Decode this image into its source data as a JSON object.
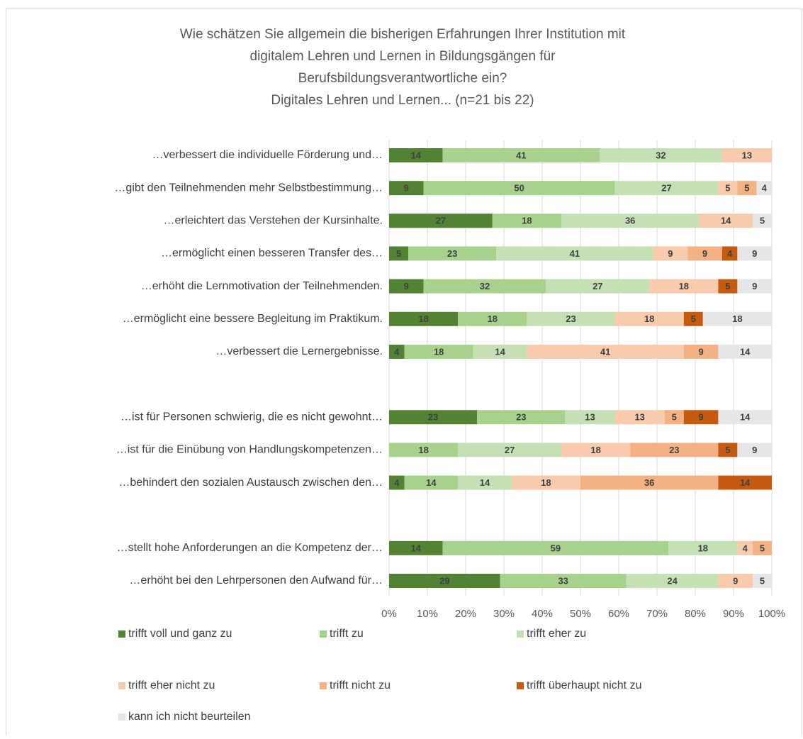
{
  "chart_data": {
    "type": "stacked-bar-horizontal",
    "title_lines": [
      "Wie schätzen Sie allgemein die bisherigen Erfahrungen Ihrer Institution mit",
      "digitalem Lehren und Lernen in Bildungsgängen für",
      "Berufsbildungsverantwortliche ein?",
      "Digitales Lehren und Lernen... (n=21 bis 22)"
    ],
    "categories": [
      "…verbessert die individuelle Förderung und…",
      "…gibt den Teilnehmenden mehr Selbstbestimmung…",
      "…erleichtert das Verstehen der Kursinhalte.",
      "…ermöglicht einen besseren Transfer des…",
      "…erhöht die Lernmotivation der Teilnehmenden.",
      "…ermöglicht eine bessere Begleitung im Praktikum.",
      "…verbessert die Lernergebnisse.",
      null,
      "…ist für Personen schwierig, die es nicht gewohnt…",
      "…ist für die Einübung von Handlungskompetenzen…",
      "…behindert den sozialen Austausch zwischen den…",
      null,
      "…stellt hohe Anforderungen an die Kompetenz der…",
      "…erhöht bei den Lehrpersonen den Aufwand für…"
    ],
    "series": [
      {
        "name": "trifft voll und ganz zu",
        "color": "#548235",
        "values": [
          14,
          9,
          27,
          5,
          9,
          18,
          4,
          null,
          23,
          null,
          4,
          null,
          14,
          29
        ]
      },
      {
        "name": "trifft zu",
        "color": "#a9d18e",
        "values": [
          41,
          50,
          18,
          23,
          32,
          18,
          18,
          null,
          23,
          18,
          14,
          null,
          59,
          33
        ]
      },
      {
        "name": "trifft eher zu",
        "color": "#c5e0b4",
        "values": [
          32,
          27,
          36,
          41,
          27,
          23,
          14,
          null,
          13,
          27,
          14,
          null,
          18,
          24
        ]
      },
      {
        "name": "trifft eher nicht zu",
        "color": "#f8cbad",
        "values": [
          13,
          5,
          14,
          9,
          18,
          18,
          41,
          null,
          13,
          18,
          18,
          null,
          4,
          9
        ]
      },
      {
        "name": "trifft nicht zu",
        "color": "#f4b183",
        "values": [
          null,
          5,
          null,
          9,
          null,
          null,
          9,
          null,
          5,
          23,
          36,
          null,
          5,
          null
        ]
      },
      {
        "name": "trifft überhaupt nicht zu",
        "color": "#c55a11",
        "values": [
          null,
          null,
          null,
          4,
          5,
          5,
          null,
          null,
          9,
          5,
          14,
          null,
          null,
          null
        ]
      },
      {
        "name": "kann ich nicht beurteilen",
        "color": "#e7e6e6",
        "values": [
          null,
          4,
          5,
          9,
          9,
          18,
          14,
          null,
          14,
          9,
          null,
          null,
          null,
          5
        ]
      }
    ],
    "xlim": [
      0,
      100
    ],
    "xticks": [
      {
        "value": 0,
        "label": "0%"
      },
      {
        "value": 10,
        "label": "10%"
      },
      {
        "value": 20,
        "label": "20%"
      },
      {
        "value": 30,
        "label": "30%"
      },
      {
        "value": 40,
        "label": "40%"
      },
      {
        "value": 50,
        "label": "50%"
      },
      {
        "value": 60,
        "label": "60%"
      },
      {
        "value": 70,
        "label": "70%"
      },
      {
        "value": 80,
        "label": "80%"
      },
      {
        "value": 90,
        "label": "90%"
      },
      {
        "value": 100,
        "label": "100%"
      }
    ],
    "grid": true,
    "legend": "bottom"
  }
}
